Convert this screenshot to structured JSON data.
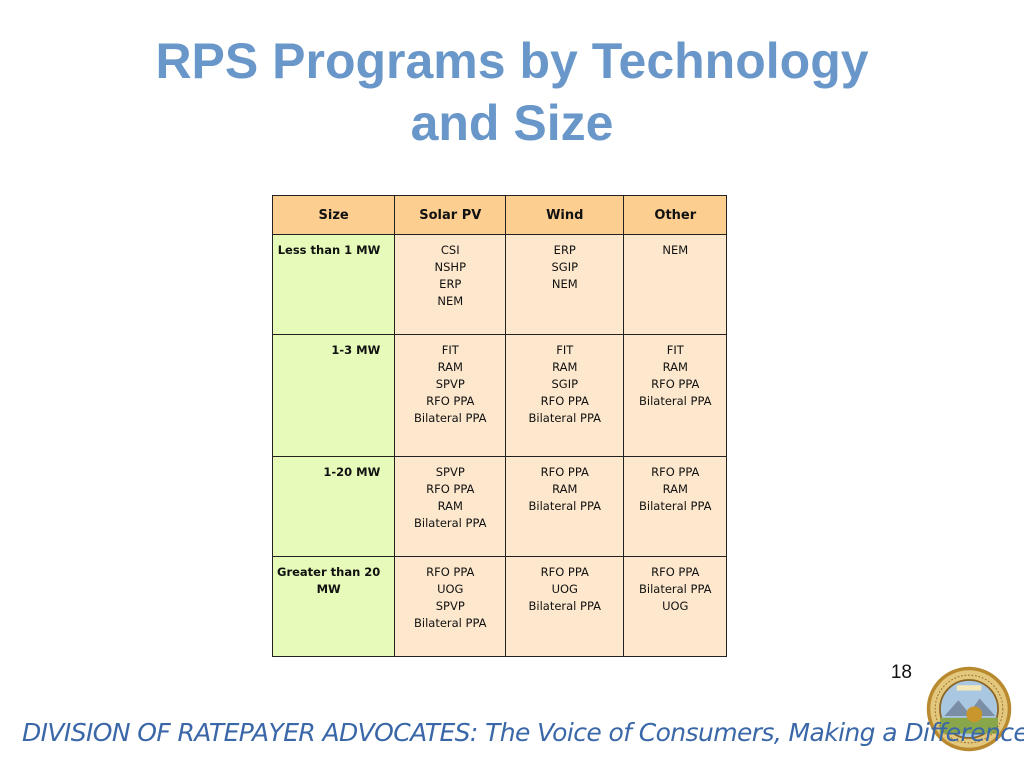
{
  "slide": {
    "title_lines": [
      "RPS Programs by Technology",
      "and Size"
    ],
    "page_number": "18",
    "footer": "DIVISION OF RATEPAYER ADVOCATES: The Voice of Consumers, Making a Difference!",
    "seal": {
      "icon": "state-seal-icon",
      "text": "PUBLIC UTILITIES COMMISSION · STATE OF CALIFORNIA · EUREKA"
    }
  },
  "table": {
    "headers": [
      "Size",
      "Solar PV",
      "Wind",
      "Other"
    ],
    "rows": [
      {
        "size": "Less than 1 MW",
        "cells": [
          [
            "CSI",
            "NSHP",
            "ERP",
            "NEM"
          ],
          [
            "ERP",
            "SGIP",
            "NEM"
          ],
          [
            "NEM"
          ]
        ]
      },
      {
        "size": "1-3 MW",
        "cells": [
          [
            "FIT",
            "RAM",
            "SPVP",
            "RFO PPA",
            "Bilateral PPA"
          ],
          [
            "FIT",
            "RAM",
            "SGIP",
            "RFO PPA",
            "Bilateral PPA"
          ],
          [
            "FIT",
            "RAM",
            "RFO PPA",
            "Bilateral PPA"
          ]
        ]
      },
      {
        "size": "1-20 MW",
        "cells": [
          [
            "SPVP",
            "RFO PPA",
            "RAM",
            "Bilateral PPA"
          ],
          [
            "RFO PPA",
            "RAM",
            "Bilateral PPA"
          ],
          [
            "RFO PPA",
            "RAM",
            "Bilateral PPA"
          ]
        ]
      },
      {
        "size_lines": [
          "Greater than 20",
          "MW"
        ],
        "cells": [
          [
            "RFO PPA",
            "UOG",
            "SPVP",
            "Bilateral PPA"
          ],
          [
            "RFO PPA",
            "UOG",
            "Bilateral PPA"
          ],
          [
            "RFO PPA",
            "Bilateral PPA",
            "UOG"
          ]
        ]
      }
    ]
  },
  "colors": {
    "title": "#6a97c9",
    "header_fill": "#fccf91",
    "cell_fill": "#fde8cd",
    "size_column_fill": "#e6fbb9",
    "footer_text": "#3a67a8"
  }
}
